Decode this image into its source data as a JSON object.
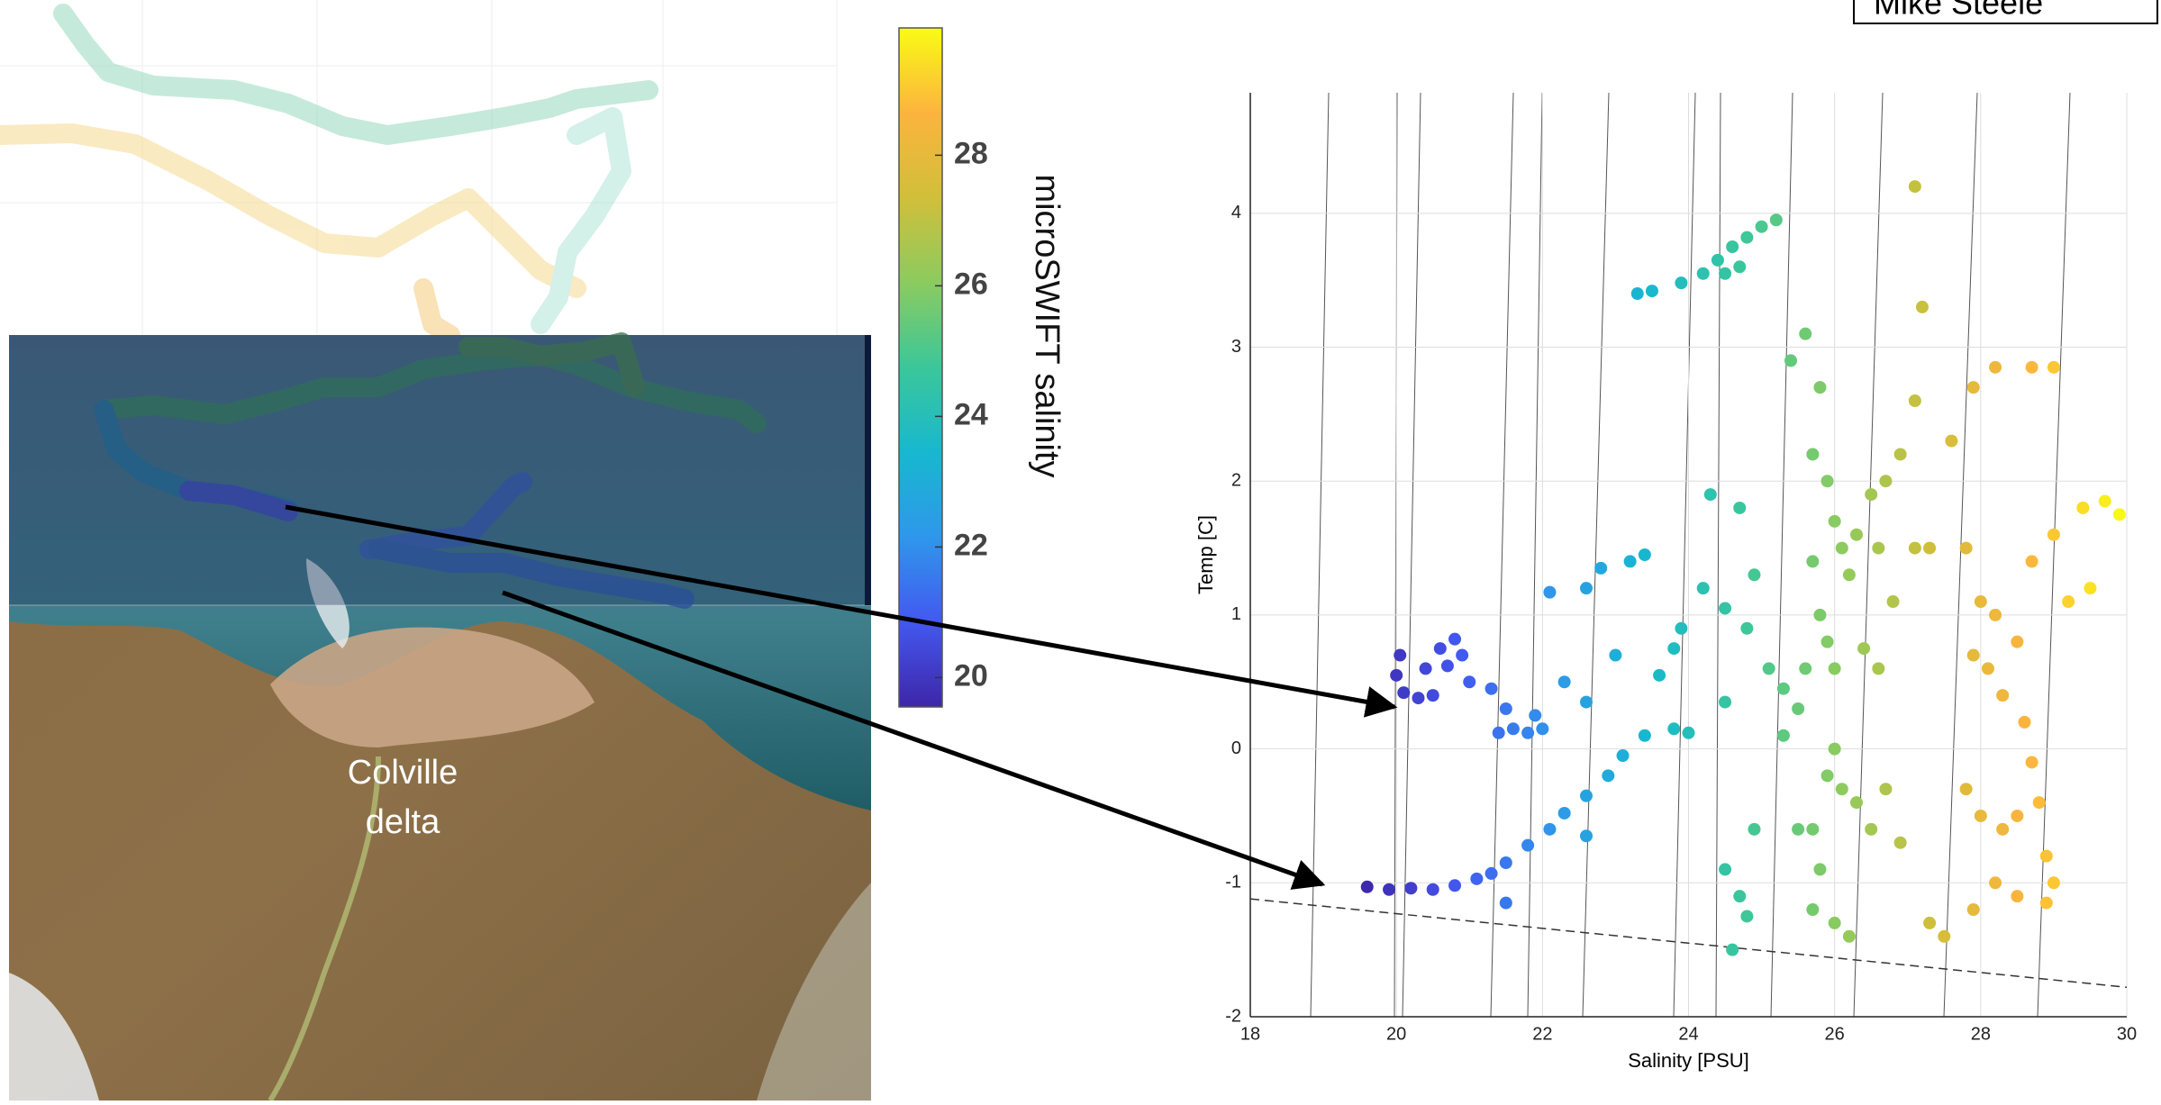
{
  "chart_data": [
    {
      "type": "colorbar",
      "label": "microSWIFT salinity",
      "clim": [
        19.55,
        29.95
      ],
      "ticks": [
        20,
        22,
        24,
        26,
        28
      ],
      "colormap": [
        "#3e26a8",
        "#4358f0",
        "#2f97eb",
        "#17b8cf",
        "#3bc79a",
        "#8bcb5f",
        "#d1bf3a",
        "#fcb43e",
        "#f9fb15"
      ]
    },
    {
      "type": "scatter",
      "xlabel": "Salinity [PSU]",
      "ylabel": "Temp [C]",
      "xlim": [
        18,
        30
      ],
      "ylim": [
        -2,
        4.9
      ],
      "xticks": [
        18,
        20,
        22,
        24,
        26,
        28,
        30
      ],
      "yticks": [
        -2,
        -1,
        0,
        1,
        2,
        3,
        4
      ],
      "grid": true,
      "x": [
        20.05,
        20.0,
        20.1,
        20.3,
        20.5,
        20.4,
        20.6,
        20.8,
        20.9,
        20.7,
        21.0,
        21.3,
        21.5,
        21.6,
        21.4,
        21.8,
        19.6,
        19.9,
        20.2,
        20.5,
        20.8,
        21.1,
        21.3,
        21.5,
        21.5,
        21.8,
        22.1,
        22.3,
        22.6,
        22.6,
        22.9,
        23.1,
        23.4,
        23.8,
        24.0,
        21.9,
        22.0,
        22.1,
        22.6,
        22.8,
        23.2,
        23.4,
        22.3,
        22.6,
        23.0,
        23.8,
        23.6,
        23.9,
        23.3,
        23.5,
        23.9,
        24.2,
        24.4,
        24.6,
        24.8,
        25.0,
        25.2,
        24.5,
        24.7,
        24.3,
        24.7,
        24.2,
        24.5,
        24.9,
        24.8,
        25.1,
        24.5,
        25.3,
        24.5,
        24.7,
        24.8,
        24.6,
        24.9,
        25.4,
        25.6,
        25.8,
        25.7,
        25.9,
        26.0,
        26.1,
        25.7,
        26.2,
        25.8,
        25.9,
        26.0,
        25.5,
        25.3,
        25.6,
        26.3,
        26.5,
        26.7,
        26.6,
        26.8,
        26.4,
        26.6,
        25.9,
        26.1,
        26.3,
        26.0,
        25.7,
        25.5,
        25.8,
        25.7,
        26.0,
        26.2,
        26.5,
        26.7,
        26.9,
        27.1,
        27.2,
        27.1,
        26.9,
        27.3,
        27.1,
        27.3,
        27.5,
        27.6,
        27.9,
        28.2,
        28.7,
        29.0,
        27.8,
        28.0,
        28.2,
        28.1,
        27.9,
        28.3,
        28.5,
        28.7,
        29.0,
        29.4,
        29.7,
        29.9,
        29.5,
        29.2,
        28.6,
        28.7,
        28.8,
        28.5,
        28.3,
        28.2,
        28.5,
        28.9,
        29.0,
        28.9,
        27.9,
        28.0,
        27.8
      ],
      "y": [
        0.7,
        0.55,
        0.42,
        0.38,
        0.4,
        0.6,
        0.75,
        0.82,
        0.7,
        0.62,
        0.5,
        0.45,
        0.3,
        0.15,
        0.12,
        0.12,
        -1.03,
        -1.05,
        -1.04,
        -1.05,
        -1.02,
        -0.97,
        -0.93,
        -1.15,
        -0.85,
        -0.72,
        -0.6,
        -0.48,
        -0.65,
        -0.35,
        -0.2,
        -0.05,
        0.1,
        0.15,
        0.12,
        0.25,
        0.15,
        1.17,
        1.2,
        1.35,
        1.4,
        1.45,
        0.5,
        0.35,
        0.7,
        0.75,
        0.55,
        0.9,
        3.4,
        3.42,
        3.48,
        3.55,
        3.65,
        3.75,
        3.82,
        3.9,
        3.95,
        3.55,
        3.6,
        1.9,
        1.8,
        1.2,
        1.05,
        1.3,
        0.9,
        0.6,
        0.35,
        0.45,
        -0.9,
        -1.1,
        -1.25,
        -1.5,
        -0.6,
        2.9,
        3.1,
        2.7,
        2.2,
        2.0,
        1.7,
        1.5,
        1.4,
        1.3,
        1.0,
        0.8,
        0.6,
        0.3,
        0.1,
        0.6,
        1.6,
        1.9,
        2.0,
        1.5,
        1.1,
        0.75,
        0.6,
        -0.2,
        -0.3,
        -0.4,
        0.0,
        -0.6,
        -0.6,
        -0.9,
        -1.2,
        -1.3,
        -1.4,
        -0.6,
        -0.3,
        -0.7,
        2.6,
        3.3,
        4.2,
        2.2,
        1.5,
        1.5,
        -1.3,
        -1.4,
        2.3,
        2.7,
        2.85,
        2.85,
        2.85,
        1.5,
        1.1,
        1.0,
        0.6,
        0.7,
        0.4,
        0.8,
        1.4,
        1.6,
        1.8,
        1.85,
        1.75,
        1.2,
        1.1,
        0.2,
        -0.1,
        -0.4,
        -0.5,
        -0.6,
        -1.0,
        -1.1,
        -0.8,
        -1.0,
        -1.15,
        -1.2,
        -0.5,
        -0.3
      ],
      "freezing_line": {
        "x": [
          18,
          30
        ],
        "y": [
          -1.12,
          -1.78
        ]
      }
    }
  ],
  "map": {
    "label_lines": [
      "Colville",
      "delta"
    ]
  },
  "header": {
    "author": "Mike Steele"
  }
}
